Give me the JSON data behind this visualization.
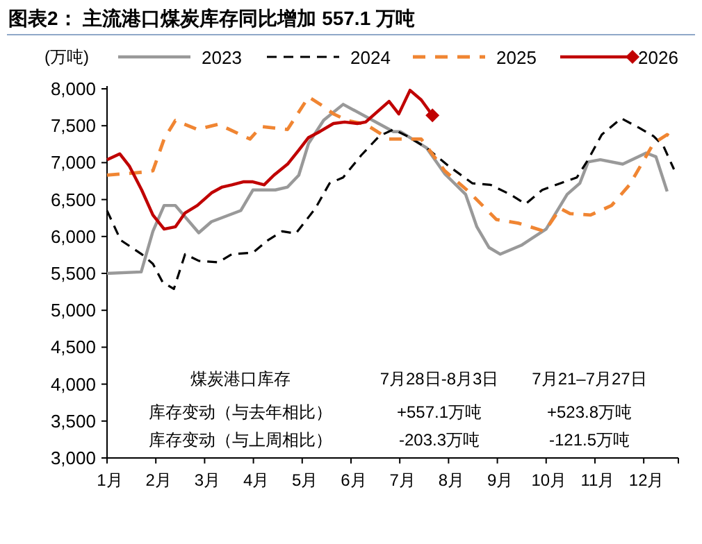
{
  "chart_data": {
    "type": "line",
    "title": "图表2：  主流港口煤炭库存同比增加 557.1 万吨",
    "ylabel": "(万吨)",
    "xlim": [
      1,
      12.71
    ],
    "xticks": [
      {
        "value": 1,
        "label": "1月"
      },
      {
        "value": 2,
        "label": "2月"
      },
      {
        "value": 3,
        "label": "3月"
      },
      {
        "value": 4,
        "label": "4月"
      },
      {
        "value": 5,
        "label": "5月"
      },
      {
        "value": 6,
        "label": "6月"
      },
      {
        "value": 7,
        "label": "7月"
      },
      {
        "value": 8,
        "label": "8月"
      },
      {
        "value": 9,
        "label": "9月"
      },
      {
        "value": 10,
        "label": "10月"
      },
      {
        "value": 11,
        "label": "11月"
      },
      {
        "value": 12,
        "label": "12月"
      }
    ],
    "ylim": [
      3000,
      8000
    ],
    "yticks": [
      {
        "value": 3000,
        "label": "3,000"
      },
      {
        "value": 3500,
        "label": "3,500"
      },
      {
        "value": 4000,
        "label": "4,000"
      },
      {
        "value": 4500,
        "label": "4,500"
      },
      {
        "value": 5000,
        "label": "5,000"
      },
      {
        "value": 5500,
        "label": "5,500"
      },
      {
        "value": 6000,
        "label": "6,000"
      },
      {
        "value": 6500,
        "label": "6,500"
      },
      {
        "value": 7000,
        "label": "7,000"
      },
      {
        "value": 7500,
        "label": "7,500"
      },
      {
        "value": 8000,
        "label": "8,000"
      }
    ],
    "grid": false,
    "legend": "top",
    "series": [
      {
        "name": "2023",
        "color": "#999999",
        "line_style": "solid",
        "x": [
          1.0,
          1.7,
          1.94,
          2.17,
          2.4,
          2.88,
          3.14,
          3.74,
          3.99,
          4.45,
          4.7,
          4.93,
          5.13,
          5.44,
          5.84,
          6.87,
          7.01,
          7.55,
          7.92,
          8.35,
          8.58,
          8.83,
          9.06,
          9.49,
          10.0,
          10.43,
          10.69,
          10.86,
          11.11,
          11.57,
          12.05,
          12.25,
          12.48
        ],
        "values": [
          5500,
          5520,
          6070,
          6420,
          6420,
          6050,
          6200,
          6350,
          6630,
          6630,
          6670,
          6830,
          7260,
          7575,
          7790,
          7420,
          7420,
          7200,
          6850,
          6570,
          6130,
          5850,
          5760,
          5880,
          6100,
          6570,
          6720,
          7010,
          7040,
          6980,
          7130,
          7080,
          6610
        ]
      },
      {
        "name": "2024",
        "color": "#000000",
        "line_style": "dashed",
        "x": [
          1.0,
          1.28,
          1.71,
          1.94,
          2.14,
          2.37,
          2.6,
          2.88,
          3.28,
          3.56,
          3.99,
          4.3,
          4.59,
          4.87,
          5.27,
          5.56,
          5.84,
          6.21,
          6.58,
          6.87,
          7.15,
          7.55,
          8.01,
          8.49,
          8.86,
          9.26,
          9.58,
          9.92,
          10.29,
          10.63,
          10.86,
          11.14,
          11.54,
          11.91,
          12.2,
          12.4,
          12.62
        ],
        "values": [
          6350,
          5950,
          5760,
          5630,
          5380,
          5290,
          5760,
          5670,
          5650,
          5760,
          5780,
          5950,
          6070,
          6040,
          6380,
          6720,
          6800,
          7100,
          7360,
          7450,
          7360,
          7200,
          6950,
          6720,
          6700,
          6570,
          6440,
          6630,
          6720,
          6800,
          7040,
          7380,
          7600,
          7470,
          7360,
          7230,
          6910
        ]
      },
      {
        "name": "2025",
        "color": "#f08532",
        "line_style": "dashed",
        "x": [
          1.0,
          1.71,
          1.94,
          2.17,
          2.4,
          2.85,
          3.28,
          3.93,
          4.16,
          4.7,
          5.13,
          5.44,
          5.64,
          5.93,
          6.3,
          6.78,
          7.44,
          7.92,
          8.41,
          8.98,
          9.43,
          9.97,
          10.29,
          10.49,
          10.91,
          11.34,
          11.71,
          12.2,
          12.48,
          12.62
        ],
        "values": [
          6830,
          6870,
          6890,
          7320,
          7570,
          7450,
          7520,
          7320,
          7490,
          7450,
          7890,
          7760,
          7660,
          7570,
          7520,
          7320,
          7320,
          6890,
          6610,
          6230,
          6180,
          6070,
          6380,
          6310,
          6290,
          6420,
          6700,
          7260,
          7380,
          7320
        ]
      },
      {
        "name": "2026",
        "color": "#c00000",
        "line_style": "solid",
        "x": [
          1.0,
          1.26,
          1.46,
          1.71,
          1.94,
          2.17,
          2.4,
          2.6,
          2.85,
          3.14,
          3.36,
          3.56,
          3.79,
          3.99,
          4.22,
          4.42,
          4.7,
          4.93,
          5.13,
          5.36,
          5.64,
          5.87,
          6.13,
          6.3,
          6.78,
          6.98,
          7.21,
          7.44,
          7.67
        ],
        "values": [
          7040,
          7120,
          6950,
          6630,
          6290,
          6100,
          6130,
          6320,
          6420,
          6590,
          6670,
          6700,
          6740,
          6740,
          6700,
          6830,
          6980,
          7170,
          7340,
          7420,
          7530,
          7550,
          7530,
          7550,
          7830,
          7660,
          7980,
          7850,
          7640
        ]
      },
      {
        "type": "scatter",
        "color": "#c00000",
        "marker": "diamond",
        "x": [
          7.67
        ],
        "values": [
          7640
        ]
      }
    ],
    "annotations": [
      "煤炭港口库存",
      "7月28日-8月3日",
      "7月21–7月27日",
      "库存变动（与去年相比）",
      "+557.1万吨",
      "+523.8万吨",
      "库存变动（与上周相比）",
      "-203.3万吨",
      "-121.5万吨"
    ]
  }
}
